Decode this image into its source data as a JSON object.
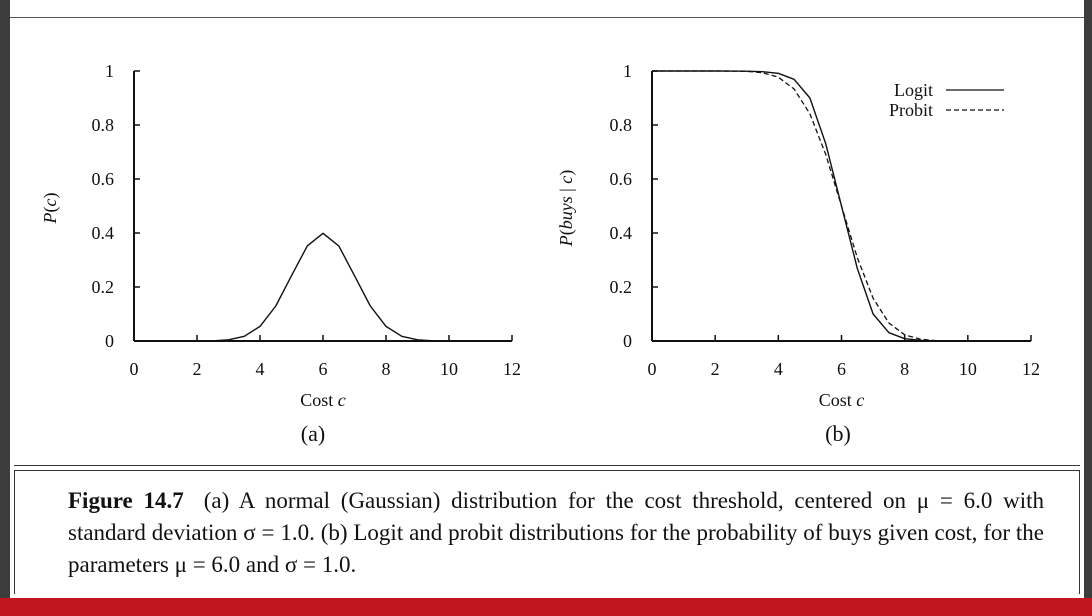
{
  "chart_data": [
    {
      "type": "line",
      "panel_label": "(a)",
      "xlabel": "Cost c",
      "ylabel": "P(c)",
      "xlim": [
        0,
        12
      ],
      "ylim": [
        0,
        1
      ],
      "x_ticks": [
        "0",
        "2",
        "4",
        "6",
        "8",
        "10",
        "12"
      ],
      "y_ticks": [
        "0",
        "0.2",
        "0.4",
        "0.6",
        "0.8",
        "1"
      ],
      "grid": false,
      "series": [
        {
          "style": "solid",
          "x": [
            0,
            1,
            2,
            2.5,
            3,
            3.5,
            4,
            4.5,
            5,
            5.5,
            6,
            6.5,
            7,
            7.5,
            8,
            8.5,
            9,
            9.5,
            10,
            11,
            12
          ],
          "y": [
            0.0,
            0.0,
            0.0001,
            0.0009,
            0.0044,
            0.0175,
            0.054,
            0.1295,
            0.242,
            0.3521,
            0.3989,
            0.3521,
            0.242,
            0.1295,
            0.054,
            0.0175,
            0.0044,
            0.0009,
            0.0001,
            0.0,
            0.0
          ]
        }
      ]
    },
    {
      "type": "line",
      "panel_label": "(b)",
      "xlabel": "Cost c",
      "ylabel": "P(buys | c)",
      "xlim": [
        0,
        12
      ],
      "ylim": [
        0,
        1
      ],
      "x_ticks": [
        "0",
        "2",
        "4",
        "6",
        "8",
        "10",
        "12"
      ],
      "y_ticks": [
        "0",
        "0.2",
        "0.4",
        "0.6",
        "0.8",
        "1"
      ],
      "grid": false,
      "legend": "top-right",
      "series": [
        {
          "name": "Logit",
          "style": "solid",
          "x": [
            0,
            1,
            2,
            2.5,
            3,
            3.5,
            4,
            4.5,
            5,
            5.5,
            6,
            6.5,
            7,
            7.5,
            8,
            8.5,
            9,
            9.5,
            10,
            11,
            12
          ],
          "y": [
            1.0,
            1.0,
            1.0,
            0.9998,
            0.9993,
            0.9975,
            0.9913,
            0.9694,
            0.9,
            0.7312,
            0.5,
            0.2688,
            0.1,
            0.0306,
            0.0087,
            0.0025,
            0.0007,
            0.0002,
            0.0,
            0.0,
            0.0
          ]
        },
        {
          "name": "Probit",
          "style": "dashed",
          "x": [
            0,
            1,
            2,
            2.5,
            3,
            3.5,
            4,
            4.5,
            5,
            5.5,
            6,
            6.5,
            7,
            7.5,
            8,
            8.5,
            9,
            9.5,
            10,
            11,
            12
          ],
          "y": [
            1.0,
            1.0,
            1.0,
            0.9998,
            0.9987,
            0.9938,
            0.9772,
            0.9332,
            0.8413,
            0.6915,
            0.5,
            0.3085,
            0.1587,
            0.0668,
            0.0228,
            0.0062,
            0.0013,
            0.0002,
            0.0,
            0.0,
            0.0
          ]
        }
      ]
    }
  ],
  "caption": {
    "figure_label": "Figure 14.7",
    "text": "(a) A normal (Gaussian) distribution for the cost threshold, centered on μ = 6.0 with standard deviation σ = 1.0. (b) Logit and probit distributions for the probability of buys given cost, for the parameters μ = 6.0 and σ = 1.0."
  },
  "colors": {
    "bottom_bar": "#c0161f",
    "background_outer": "#3c3c3c",
    "page": "#ffffff"
  }
}
